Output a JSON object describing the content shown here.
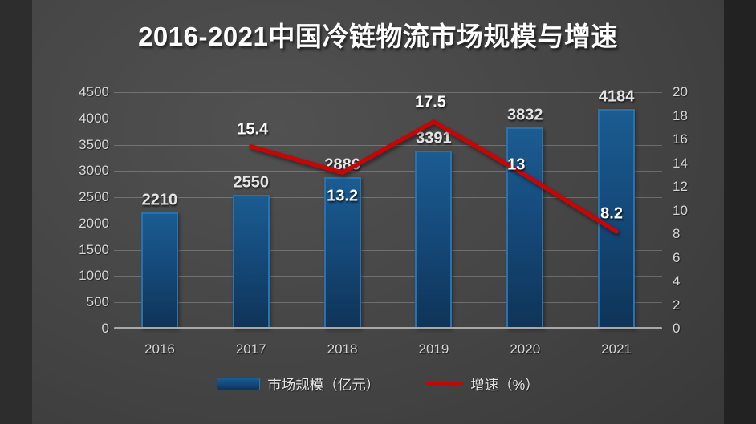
{
  "title": "2016-2021中国冷链物流市场规模与增速",
  "colors": {
    "bar_top": "#1b5c91",
    "bar_mid": "#154a7b",
    "bar_bottom": "#0f3458",
    "bar_border": "#2a72ae",
    "line": "#c40606",
    "axis_text": "#d6d6d6",
    "label_text": "#e4e4e4",
    "on_chart_text": "#ffffff",
    "gridline": "rgba(255,255,255,0.22)",
    "baseline": "#a8a8a8"
  },
  "chart_data": {
    "type": "bar",
    "secondary_type": "line",
    "title": "2016-2021中国冷链物流市场规模与增速",
    "categories": [
      "2016",
      "2017",
      "2018",
      "2019",
      "2020",
      "2021"
    ],
    "series": [
      {
        "name": "市场规模（亿元）",
        "chart": "bar",
        "axis": "left",
        "values": [
          2210,
          2550,
          2886,
          3391,
          3832,
          4184
        ],
        "labels": [
          "2210",
          "2550",
          "2886",
          "3391",
          "3832",
          "4184"
        ]
      },
      {
        "name": "增速（%）",
        "chart": "line",
        "axis": "right",
        "values": [
          null,
          15.4,
          13.2,
          17.5,
          13,
          8.2
        ],
        "labels": [
          "",
          "15.4",
          "13.2",
          "17.5",
          "13",
          "8.2"
        ]
      }
    ],
    "left_axis": {
      "min": 0,
      "max": 4500,
      "step": 500,
      "ticks": [
        "0",
        "500",
        "1000",
        "1500",
        "2000",
        "2500",
        "3000",
        "3500",
        "4000",
        "4500"
      ]
    },
    "right_axis": {
      "min": 0,
      "max": 20,
      "step": 2,
      "ticks": [
        "0",
        "2",
        "4",
        "6",
        "8",
        "10",
        "12",
        "14",
        "16",
        "18",
        "20"
      ]
    },
    "grid": true,
    "legend_position": "bottom"
  }
}
